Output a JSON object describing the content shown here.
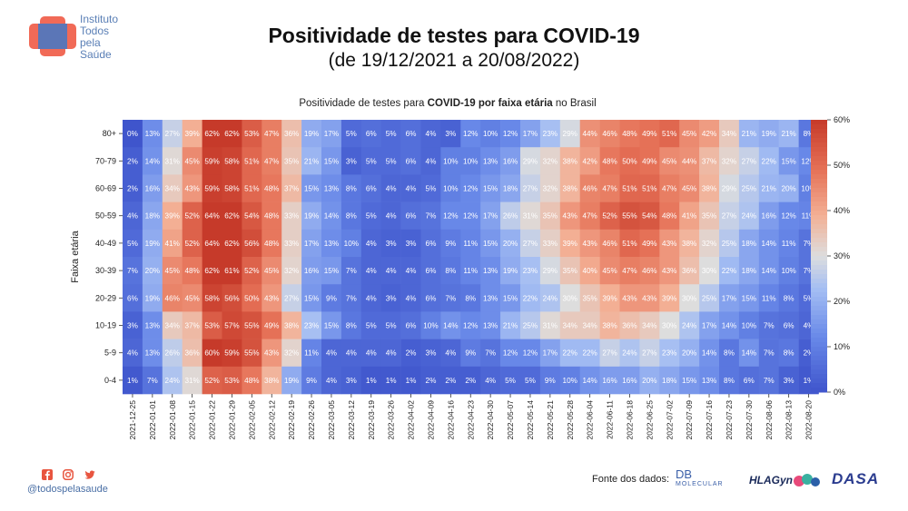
{
  "header": {
    "logo_lines": [
      "Instituto",
      "Todos",
      "pela",
      "Saúde"
    ],
    "title": "Positividade de testes para COVID-19",
    "subtitle": "(de 19/12/2021 a 20/08/2022)"
  },
  "footer": {
    "handle": "@todospelasaude",
    "source_label": "Fonte dos dados:",
    "source_logos": [
      "DB",
      "MOLECULAR",
      "HLAGyn",
      "DASA"
    ],
    "social_icons": [
      "facebook-icon",
      "instagram-icon",
      "twitter-icon"
    ]
  },
  "colors": {
    "low": "#3f55cc",
    "mid": "#dddddd",
    "high": "#c63a2a"
  },
  "chart_data": {
    "type": "heatmap",
    "title_parts": [
      "Positividade de testes para ",
      "COVID-19 por faixa etária",
      " no Brasil"
    ],
    "ylabel": "Faixa etária",
    "x": [
      "2021-12-25",
      "2022-01-01",
      "2022-01-08",
      "2022-01-15",
      "2022-01-22",
      "2022-01-29",
      "2022-02-05",
      "2022-02-12",
      "2022-02-19",
      "2022-02-26",
      "2022-03-05",
      "2022-03-12",
      "2022-03-19",
      "2022-03-26",
      "2022-04-02",
      "2022-04-09",
      "2022-04-16",
      "2022-04-23",
      "2022-04-30",
      "2022-05-07",
      "2022-05-14",
      "2022-05-21",
      "2022-05-28",
      "2022-06-04",
      "2022-06-11",
      "2022-06-18",
      "2022-06-25",
      "2022-07-02",
      "2022-07-09",
      "2022-07-16",
      "2022-07-23",
      "2022-07-30",
      "2022-08-06",
      "2022-08-13",
      "2022-08-20"
    ],
    "y": [
      "80+",
      "70-79",
      "60-69",
      "50-59",
      "40-49",
      "30-39",
      "20-29",
      "10-19",
      "5-9",
      "0-4"
    ],
    "values": [
      [
        0,
        13,
        27,
        39,
        62,
        62,
        53,
        47,
        36,
        19,
        17,
        5,
        6,
        5,
        6,
        4,
        3,
        12,
        10,
        12,
        17,
        23,
        29,
        44,
        46,
        48,
        49,
        51,
        45,
        42,
        34,
        21,
        19,
        21,
        8
      ],
      [
        2,
        14,
        31,
        45,
        59,
        58,
        51,
        47,
        35,
        21,
        15,
        3,
        5,
        5,
        6,
        4,
        10,
        10,
        13,
        16,
        29,
        32,
        38,
        42,
        48,
        50,
        49,
        45,
        44,
        37,
        32,
        27,
        22,
        15,
        12
      ],
      [
        2,
        16,
        34,
        43,
        59,
        58,
        51,
        48,
        37,
        15,
        13,
        8,
        6,
        4,
        4,
        5,
        10,
        12,
        15,
        18,
        27,
        32,
        38,
        46,
        47,
        51,
        51,
        47,
        45,
        38,
        29,
        25,
        21,
        20,
        10
      ],
      [
        4,
        18,
        39,
        52,
        64,
        62,
        54,
        48,
        33,
        19,
        14,
        8,
        5,
        4,
        6,
        7,
        12,
        12,
        17,
        26,
        31,
        35,
        43,
        47,
        52,
        55,
        54,
        48,
        41,
        35,
        27,
        24,
        16,
        12,
        11
      ],
      [
        5,
        19,
        41,
        52,
        64,
        62,
        56,
        48,
        33,
        17,
        13,
        10,
        4,
        3,
        3,
        6,
        9,
        11,
        15,
        20,
        27,
        33,
        39,
        43,
        46,
        51,
        49,
        43,
        38,
        32,
        25,
        18,
        14,
        11,
        7
      ],
      [
        7,
        20,
        45,
        48,
        62,
        61,
        52,
        45,
        32,
        16,
        15,
        7,
        4,
        4,
        4,
        6,
        8,
        11,
        13,
        19,
        23,
        29,
        35,
        40,
        45,
        47,
        46,
        43,
        36,
        30,
        22,
        18,
        14,
        10,
        7
      ],
      [
        6,
        19,
        46,
        45,
        58,
        56,
        50,
        43,
        27,
        15,
        9,
        7,
        4,
        3,
        4,
        6,
        7,
        8,
        13,
        15,
        22,
        24,
        30,
        35,
        39,
        43,
        43,
        39,
        30,
        25,
        17,
        15,
        11,
        8,
        5
      ],
      [
        3,
        13,
        34,
        37,
        53,
        57,
        55,
        49,
        38,
        23,
        15,
        8,
        5,
        5,
        6,
        10,
        14,
        12,
        13,
        21,
        25,
        31,
        34,
        34,
        38,
        36,
        34,
        30,
        24,
        17,
        14,
        10,
        7,
        6,
        4
      ],
      [
        4,
        13,
        26,
        36,
        60,
        59,
        55,
        43,
        32,
        11,
        4,
        4,
        4,
        4,
        2,
        3,
        4,
        9,
        7,
        12,
        12,
        17,
        22,
        22,
        27,
        24,
        27,
        23,
        20,
        14,
        8,
        14,
        7,
        8,
        2
      ],
      [
        1,
        7,
        24,
        31,
        52,
        53,
        48,
        38,
        19,
        9,
        4,
        3,
        1,
        1,
        1,
        2,
        2,
        2,
        4,
        5,
        5,
        9,
        10,
        14,
        16,
        16,
        20,
        18,
        15,
        13,
        8,
        6,
        7,
        3,
        1
      ]
    ],
    "value_format": "{v}%",
    "colorbar": {
      "min": 0,
      "max": 60,
      "ticks": [
        "0%",
        "10%",
        "20%",
        "30%",
        "40%",
        "50%",
        "60%"
      ]
    }
  }
}
